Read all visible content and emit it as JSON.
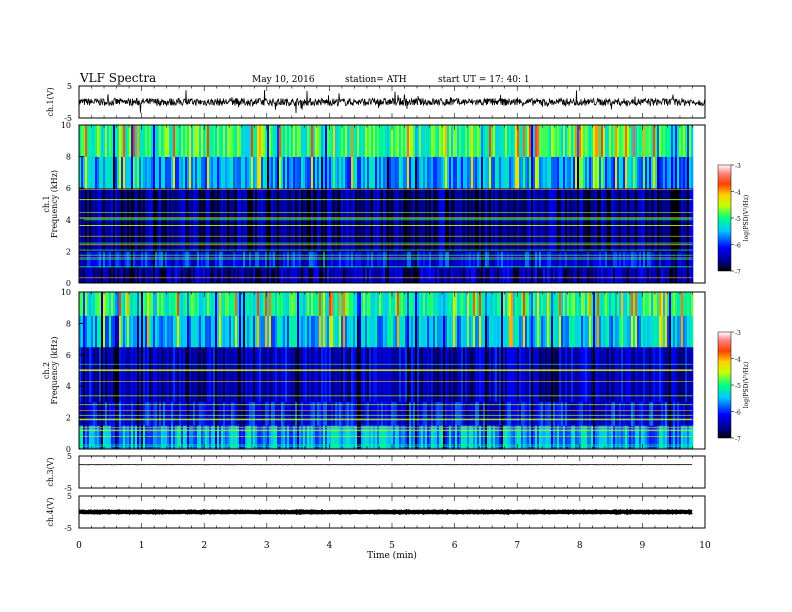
{
  "header": {
    "title": "VLF  Spectra",
    "date": "May 10, 2016",
    "station": "station= ATH",
    "start": "start  UT  =    17: 40: 1"
  },
  "chart_data": [
    {
      "type": "line",
      "ylabel": "ch.1(V)",
      "ylim": [
        -5,
        5
      ],
      "yticks": [
        "5",
        "-5"
      ],
      "xlim": [
        0,
        10
      ],
      "description_level": "noisy trace centered near 0 V",
      "y_mean": 0,
      "y_noise": 1.2
    },
    {
      "type": "heatmap",
      "ylabel_channel": "ch.1",
      "ylabel": "Frequency  (kHz)",
      "ylim": [
        0,
        10
      ],
      "yticks": [
        "0",
        "2",
        "4",
        "6",
        "8",
        "10"
      ],
      "xlim": [
        0,
        9.8
      ],
      "colorbar": {
        "label": "log(PSD(V²/Hz)",
        "ticks": [
          "-3",
          "-4",
          "-5",
          "-6",
          "-7"
        ],
        "range": [
          -7,
          -3
        ]
      },
      "bands_khz": [
        {
          "from": 0,
          "to": 1.0,
          "level": -6.5
        },
        {
          "from": 1.0,
          "to": 2.0,
          "level": -6.2
        },
        {
          "from": 2.0,
          "to": 6.0,
          "level": -6.6
        },
        {
          "from": 6.0,
          "to": 8.0,
          "level": -5.6
        },
        {
          "from": 8.0,
          "to": 10.0,
          "level": -5.0
        }
      ]
    },
    {
      "type": "heatmap",
      "ylabel_channel": "ch.2",
      "ylabel": "Frequency  (kHz)",
      "ylim": [
        0,
        10
      ],
      "yticks": [
        "0",
        "2",
        "4",
        "6",
        "8",
        "10"
      ],
      "xlim": [
        0,
        9.8
      ],
      "colorbar": {
        "label": "log(PSD(V²/Hz)",
        "ticks": [
          "-3",
          "-4",
          "-5",
          "-6",
          "-7"
        ],
        "range": [
          -7,
          -3
        ]
      },
      "bands_khz": [
        {
          "from": 0,
          "to": 1.5,
          "level": -5.6
        },
        {
          "from": 1.5,
          "to": 3.0,
          "level": -6.2
        },
        {
          "from": 3.0,
          "to": 6.5,
          "level": -6.4
        },
        {
          "from": 6.5,
          "to": 8.5,
          "level": -5.5
        },
        {
          "from": 8.5,
          "to": 10.0,
          "level": -5.1
        }
      ]
    },
    {
      "type": "line",
      "ylabel": "ch.3(V)",
      "ylim": [
        -5,
        5
      ],
      "yticks": [
        "5",
        "-5"
      ],
      "xlim": [
        0,
        9.8
      ],
      "y_mean": 2.3,
      "y_noise": 0.05
    },
    {
      "type": "line",
      "ylabel": "ch.4(V)",
      "ylim": [
        -5,
        5
      ],
      "yticks": [
        "5",
        "-5"
      ],
      "xlim": [
        0,
        9.8
      ],
      "y_mean": 0,
      "y_noise": 0.1,
      "xlabel": "Time  (min)",
      "xticks": [
        "0",
        "1",
        "2",
        "3",
        "4",
        "5",
        "6",
        "7",
        "8",
        "9",
        "10"
      ]
    }
  ]
}
